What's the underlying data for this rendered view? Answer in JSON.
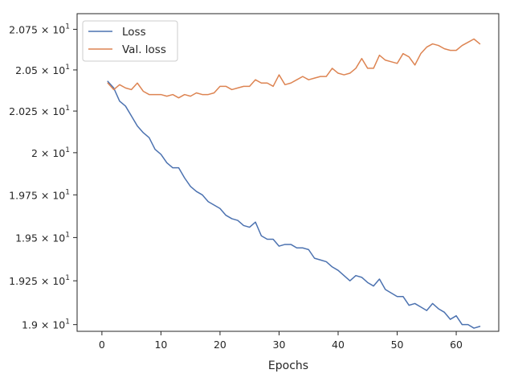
{
  "chart_data": {
    "type": "line",
    "xlabel": "Epochs",
    "ylabel": "",
    "xlim": [
      -4.2,
      67.2
    ],
    "ylim": [
      18.962,
      20.847
    ],
    "xticks": [
      0,
      10,
      20,
      30,
      40,
      50,
      60
    ],
    "yticks": [
      19.0,
      19.25,
      19.5,
      19.75,
      20.0,
      20.25,
      20.5,
      20.75
    ],
    "ytick_labels": [
      {
        "mantissa": "1.9",
        "base": "10",
        "exp": "1"
      },
      {
        "mantissa": "1.925",
        "base": "10",
        "exp": "1"
      },
      {
        "mantissa": "1.95",
        "base": "10",
        "exp": "1"
      },
      {
        "mantissa": "1.975",
        "base": "10",
        "exp": "1"
      },
      {
        "mantissa": "2",
        "base": "10",
        "exp": "1"
      },
      {
        "mantissa": "2.025",
        "base": "10",
        "exp": "1"
      },
      {
        "mantissa": "2.05",
        "base": "10",
        "exp": "1"
      },
      {
        "mantissa": "2.075",
        "base": "10",
        "exp": "1"
      }
    ],
    "y_scale": "log",
    "grid": false,
    "legend_position": "upper-left",
    "series": [
      {
        "name": "Loss",
        "color": "#4c72b0",
        "x": [
          1,
          2,
          3,
          4,
          5,
          6,
          7,
          8,
          9,
          10,
          11,
          12,
          13,
          14,
          15,
          16,
          17,
          18,
          19,
          20,
          21,
          22,
          23,
          24,
          25,
          26,
          27,
          28,
          29,
          30,
          31,
          32,
          33,
          34,
          35,
          36,
          37,
          38,
          39,
          40,
          41,
          42,
          43,
          44,
          45,
          46,
          47,
          48,
          49,
          50,
          51,
          52,
          53,
          54,
          55,
          56,
          57,
          58,
          59,
          60,
          61,
          62,
          63,
          64
        ],
        "values": [
          20.43,
          20.39,
          20.31,
          20.28,
          20.22,
          20.16,
          20.12,
          20.09,
          20.02,
          19.99,
          19.94,
          19.91,
          19.91,
          19.85,
          19.8,
          19.77,
          19.75,
          19.71,
          19.69,
          19.67,
          19.63,
          19.61,
          19.6,
          19.57,
          19.56,
          19.59,
          19.51,
          19.49,
          19.49,
          19.45,
          19.46,
          19.46,
          19.44,
          19.44,
          19.43,
          19.38,
          19.37,
          19.36,
          19.33,
          19.31,
          19.28,
          19.25,
          19.28,
          19.27,
          19.24,
          19.22,
          19.26,
          19.2,
          19.18,
          19.16,
          19.16,
          19.11,
          19.12,
          19.1,
          19.08,
          19.12,
          19.09,
          19.07,
          19.03,
          19.05,
          19.0,
          19.0,
          18.98,
          18.99
        ]
      },
      {
        "name": "Val. loss",
        "color": "#dd8452",
        "x": [
          1,
          2,
          3,
          4,
          5,
          6,
          7,
          8,
          9,
          10,
          11,
          12,
          13,
          14,
          15,
          16,
          17,
          18,
          19,
          20,
          21,
          22,
          23,
          24,
          25,
          26,
          27,
          28,
          29,
          30,
          31,
          32,
          33,
          34,
          35,
          36,
          37,
          38,
          39,
          40,
          41,
          42,
          43,
          44,
          45,
          46,
          47,
          48,
          49,
          50,
          51,
          52,
          53,
          54,
          55,
          56,
          57,
          58,
          59,
          60,
          61,
          62,
          63,
          64
        ],
        "values": [
          20.42,
          20.38,
          20.41,
          20.39,
          20.38,
          20.42,
          20.37,
          20.35,
          20.35,
          20.35,
          20.34,
          20.35,
          20.33,
          20.35,
          20.34,
          20.36,
          20.35,
          20.35,
          20.36,
          20.4,
          20.4,
          20.38,
          20.39,
          20.4,
          20.4,
          20.44,
          20.42,
          20.42,
          20.4,
          20.47,
          20.41,
          20.42,
          20.44,
          20.46,
          20.44,
          20.45,
          20.46,
          20.46,
          20.51,
          20.48,
          20.47,
          20.48,
          20.51,
          20.57,
          20.51,
          20.51,
          20.59,
          20.56,
          20.55,
          20.54,
          20.6,
          20.58,
          20.53,
          20.6,
          20.64,
          20.66,
          20.65,
          20.63,
          20.62,
          20.62,
          20.65,
          20.67,
          20.69,
          20.66
        ]
      }
    ]
  }
}
